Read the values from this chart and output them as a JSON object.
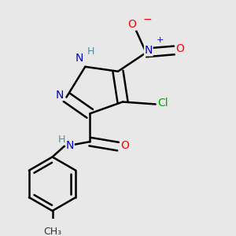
{
  "bg_color": "#e8e8e8",
  "bond_color": "#000000",
  "bond_width": 1.8,
  "atom_colors": {
    "N": "#0000cc",
    "O": "#ff0000",
    "Cl": "#00aa00",
    "C": "#000000",
    "H": "#5a8a9a"
  },
  "font_size": 10,
  "fig_size": [
    3.0,
    3.0
  ],
  "dpi": 100
}
